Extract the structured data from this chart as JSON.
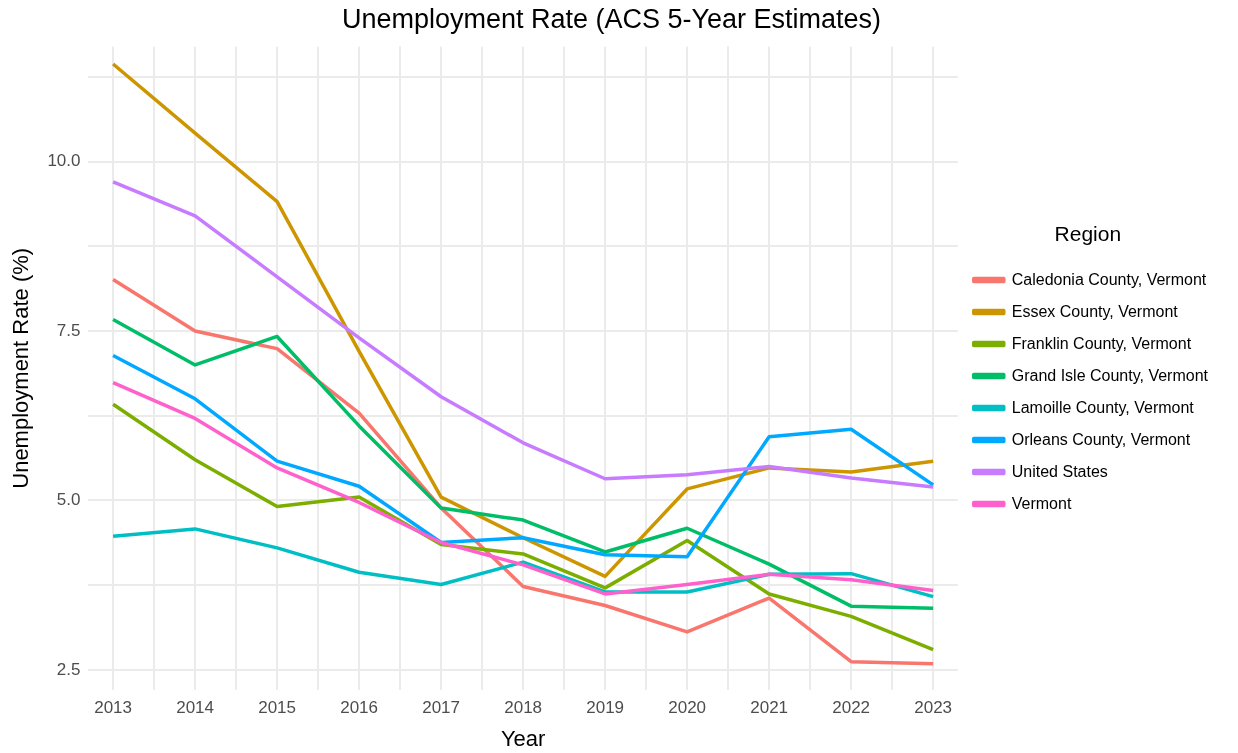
{
  "chart_data": {
    "type": "line",
    "title": "Unemployment Rate (ACS 5-Year Estimates)",
    "xlabel": "Year",
    "ylabel": "Unemployment Rate (%)",
    "legend_title": "Region",
    "legend": "right",
    "grid": true,
    "line_style": "solid",
    "marker": "none",
    "x": [
      2013,
      2014,
      2015,
      2016,
      2017,
      2018,
      2019,
      2020,
      2021,
      2022,
      2023
    ],
    "xlim": [
      2012.7,
      2023.3
    ],
    "xticks": [
      2013,
      {
        "value": 2013.5,
        "label": null
      },
      2014,
      {
        "value": 2014.5,
        "label": null
      },
      2015,
      {
        "value": 2015.5,
        "label": null
      },
      2016,
      {
        "value": 2016.5,
        "label": null
      },
      2017,
      {
        "value": 2017.5,
        "label": null
      },
      2018,
      {
        "value": 2018.5,
        "label": null
      },
      2019,
      {
        "value": 2019.5,
        "label": null
      },
      2020,
      {
        "value": 2020.5,
        "label": null
      },
      2021,
      {
        "value": 2021.5,
        "label": null
      },
      2022,
      {
        "value": 2022.5,
        "label": null
      },
      2023
    ],
    "ylim": [
      2.2,
      11.7
    ],
    "yticks": [
      {
        "value": 2.5,
        "label": "2.5"
      },
      {
        "value": 3.75,
        "label": null
      },
      {
        "value": 5,
        "label": "5.0"
      },
      {
        "value": 6.25,
        "label": null
      },
      {
        "value": 7.5,
        "label": "7.5"
      },
      {
        "value": 8.75,
        "label": null
      },
      {
        "value": 10,
        "label": "10.0"
      },
      {
        "value": 11.25,
        "label": null
      }
    ],
    "series": [
      {
        "name": "Caledonia County, Vermont",
        "color": "#f8766d",
        "values": [
          8.26,
          7.5,
          7.24,
          6.29,
          4.89,
          3.73,
          3.45,
          3.06,
          3.56,
          2.62,
          2.59
        ]
      },
      {
        "name": "Essex County, Vermont",
        "color": "#cd9600",
        "values": [
          11.44,
          10.42,
          9.41,
          7.2,
          5.05,
          4.45,
          3.88,
          5.17,
          5.48,
          5.42,
          5.58
        ]
      },
      {
        "name": "Franklin County, Vermont",
        "color": "#7cae00",
        "values": [
          6.42,
          5.6,
          4.91,
          5.05,
          4.35,
          4.21,
          3.71,
          4.41,
          3.62,
          3.29,
          2.8
        ]
      },
      {
        "name": "Grand Isle County, Vermont",
        "color": "#00be67",
        "values": [
          7.67,
          7.0,
          7.42,
          6.1,
          4.89,
          4.71,
          4.24,
          4.59,
          4.06,
          3.44,
          3.41
        ]
      },
      {
        "name": "Lamoille County, Vermont",
        "color": "#00bfc4",
        "values": [
          4.47,
          4.58,
          4.3,
          3.94,
          3.76,
          4.09,
          3.65,
          3.65,
          3.91,
          3.92,
          3.58
        ]
      },
      {
        "name": "Orleans County, Vermont",
        "color": "#00a9ff",
        "values": [
          7.14,
          6.5,
          5.58,
          5.21,
          4.38,
          4.45,
          4.2,
          4.17,
          5.94,
          6.05,
          5.23
        ]
      },
      {
        "name": "United States",
        "color": "#c77cff",
        "values": [
          9.7,
          9.2,
          8.3,
          7.4,
          6.53,
          5.85,
          5.32,
          5.38,
          5.5,
          5.33,
          5.2
        ]
      },
      {
        "name": "Vermont",
        "color": "#ff61cc",
        "values": [
          6.74,
          6.21,
          5.48,
          4.97,
          4.38,
          4.05,
          3.62,
          3.76,
          3.91,
          3.83,
          3.67
        ]
      }
    ]
  }
}
